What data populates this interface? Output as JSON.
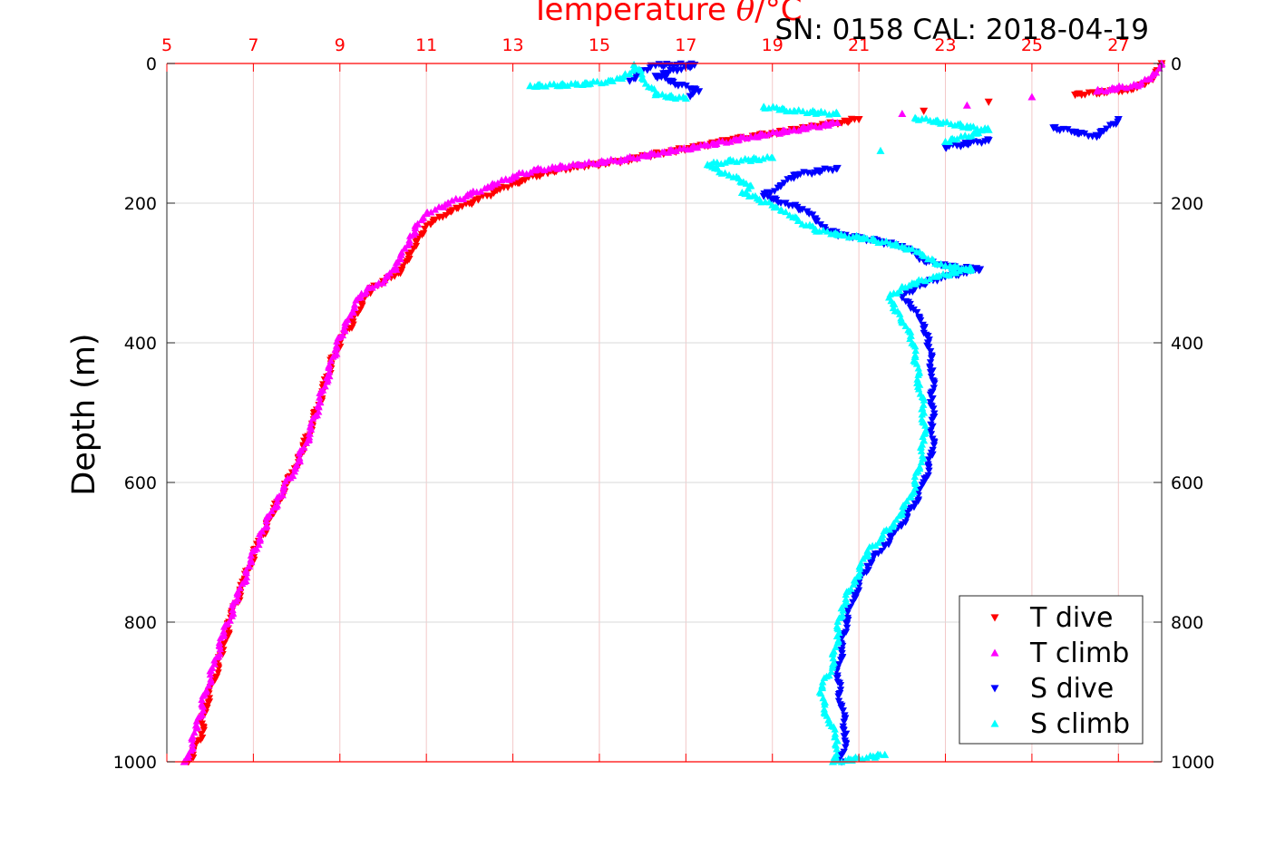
{
  "header": {
    "title_prefix": "Temperature ",
    "title_symbol": "θ",
    "title_unit": "/°C",
    "serial_label": "SN: 0158  CAL: 2018-04-19"
  },
  "colors": {
    "t_dive": "#ff0000",
    "t_climb": "#ff00ff",
    "s_dive": "#0000ff",
    "s_climb": "#00ffff",
    "top_axis": "#ff0000",
    "grid_red": "#f3c8c8",
    "grid_gray": "#d9d9d9"
  },
  "chart_data": {
    "type": "scatter",
    "ylabel": "Depth (m)",
    "xlim": [
      5,
      28
    ],
    "ylim": [
      0,
      1000
    ],
    "y_reversed": true,
    "x_ticks": [
      "5",
      "7",
      "9",
      "11",
      "13",
      "15",
      "17",
      "19",
      "21",
      "23",
      "25",
      "27"
    ],
    "y_ticks_left": [
      "0",
      "200",
      "400",
      "600",
      "800",
      "1000"
    ],
    "y_ticks_right": [
      "0",
      "200",
      "400",
      "600",
      "800",
      "1000"
    ],
    "grid": true,
    "legend_position": "bottom-right",
    "series": [
      {
        "name": "T dive",
        "marker": "triangle-down",
        "points": [
          [
            28.0,
            0
          ],
          [
            27.9,
            10
          ],
          [
            27.7,
            25
          ],
          [
            27.3,
            37
          ],
          [
            26.0,
            45
          ],
          [
            24.0,
            55
          ],
          [
            22.5,
            68
          ],
          [
            21.0,
            80
          ],
          [
            20.0,
            90
          ],
          [
            19.0,
            100
          ],
          [
            18.0,
            110
          ],
          [
            17.2,
            120
          ],
          [
            16.3,
            130
          ],
          [
            15.5,
            140
          ],
          [
            14.5,
            148
          ],
          [
            13.7,
            157
          ],
          [
            13.2,
            168
          ],
          [
            12.7,
            180
          ],
          [
            12.2,
            195
          ],
          [
            11.7,
            207
          ],
          [
            11.3,
            220
          ],
          [
            11.1,
            230
          ],
          [
            10.9,
            245
          ],
          [
            10.7,
            265
          ],
          [
            10.6,
            280
          ],
          [
            10.4,
            300
          ],
          [
            10.0,
            312
          ],
          [
            9.7,
            325
          ],
          [
            9.5,
            345
          ],
          [
            9.3,
            370
          ],
          [
            9.0,
            400
          ],
          [
            8.8,
            430
          ],
          [
            8.6,
            470
          ],
          [
            8.4,
            510
          ],
          [
            8.1,
            560
          ],
          [
            7.8,
            600
          ],
          [
            7.4,
            650
          ],
          [
            7.1,
            690
          ],
          [
            6.8,
            740
          ],
          [
            6.5,
            790
          ],
          [
            6.3,
            840
          ],
          [
            6.1,
            880
          ],
          [
            5.9,
            920
          ],
          [
            5.8,
            960
          ],
          [
            5.6,
            990
          ],
          [
            5.5,
            1000
          ]
        ]
      },
      {
        "name": "T climb",
        "marker": "triangle-up",
        "points": [
          [
            28.0,
            0
          ],
          [
            27.8,
            15
          ],
          [
            27.5,
            30
          ],
          [
            26.5,
            40
          ],
          [
            25.0,
            48
          ],
          [
            23.5,
            60
          ],
          [
            22.0,
            72
          ],
          [
            20.5,
            85
          ],
          [
            19.5,
            95
          ],
          [
            18.5,
            105
          ],
          [
            17.5,
            117
          ],
          [
            16.5,
            127
          ],
          [
            15.5,
            138
          ],
          [
            14.5,
            145
          ],
          [
            13.5,
            153
          ],
          [
            13.0,
            162
          ],
          [
            12.5,
            175
          ],
          [
            12.0,
            188
          ],
          [
            11.5,
            200
          ],
          [
            11.0,
            215
          ],
          [
            10.8,
            230
          ],
          [
            10.7,
            245
          ],
          [
            10.5,
            265
          ],
          [
            10.4,
            280
          ],
          [
            10.3,
            295
          ],
          [
            9.9,
            315
          ],
          [
            9.5,
            330
          ],
          [
            9.3,
            355
          ],
          [
            9.1,
            380
          ],
          [
            8.9,
            410
          ],
          [
            8.7,
            450
          ],
          [
            8.5,
            490
          ],
          [
            8.3,
            530
          ],
          [
            8.0,
            575
          ],
          [
            7.6,
            620
          ],
          [
            7.2,
            670
          ],
          [
            6.9,
            720
          ],
          [
            6.6,
            770
          ],
          [
            6.3,
            820
          ],
          [
            6.1,
            860
          ],
          [
            5.9,
            900
          ],
          [
            5.7,
            950
          ],
          [
            5.5,
            990
          ],
          [
            5.4,
            1000
          ]
        ]
      },
      {
        "name": "S dive",
        "marker": "triangle-down",
        "points": [
          [
            15.7,
            25
          ],
          [
            16.0,
            10
          ],
          [
            16.2,
            3
          ],
          [
            16.8,
            2
          ],
          [
            17.2,
            2
          ],
          [
            16.3,
            18
          ],
          [
            17.3,
            40
          ],
          [
            17.1,
            47
          ],
          [
            23.0,
            120
          ],
          [
            24.0,
            110
          ],
          [
            25.5,
            92
          ],
          [
            26.0,
            98
          ],
          [
            26.5,
            105
          ],
          [
            27.0,
            80
          ],
          [
            20.5,
            150
          ],
          [
            19.5,
            160
          ],
          [
            19.2,
            175
          ],
          [
            18.8,
            190
          ],
          [
            19.3,
            200
          ],
          [
            19.8,
            212
          ],
          [
            20.0,
            225
          ],
          [
            20.2,
            235
          ],
          [
            20.5,
            245
          ],
          [
            21.0,
            250
          ],
          [
            21.5,
            255
          ],
          [
            22.0,
            262
          ],
          [
            22.3,
            270
          ],
          [
            22.4,
            280
          ],
          [
            23.0,
            290
          ],
          [
            23.8,
            295
          ],
          [
            23.0,
            305
          ],
          [
            22.3,
            320
          ],
          [
            22.0,
            335
          ],
          [
            22.2,
            350
          ],
          [
            22.4,
            365
          ],
          [
            22.5,
            380
          ],
          [
            22.6,
            400
          ],
          [
            22.7,
            440
          ],
          [
            22.7,
            480
          ],
          [
            22.7,
            520
          ],
          [
            22.7,
            560
          ],
          [
            22.5,
            600
          ],
          [
            22.3,
            630
          ],
          [
            22.0,
            660
          ],
          [
            21.6,
            690
          ],
          [
            21.2,
            720
          ],
          [
            20.9,
            760
          ],
          [
            20.7,
            800
          ],
          [
            20.6,
            840
          ],
          [
            20.5,
            880
          ],
          [
            20.6,
            920
          ],
          [
            20.7,
            960
          ],
          [
            20.6,
            1000
          ]
        ]
      },
      {
        "name": "S climb",
        "marker": "triangle-up",
        "points": [
          [
            13.4,
            32
          ],
          [
            14.5,
            30
          ],
          [
            15.3,
            25
          ],
          [
            15.7,
            15
          ],
          [
            15.8,
            2
          ],
          [
            16.3,
            45
          ],
          [
            17.0,
            50
          ],
          [
            18.8,
            62
          ],
          [
            19.5,
            68
          ],
          [
            20.5,
            72
          ],
          [
            22.3,
            78
          ],
          [
            23.5,
            90
          ],
          [
            24.0,
            95
          ],
          [
            23.0,
            112
          ],
          [
            21.5,
            125
          ],
          [
            19.0,
            135
          ],
          [
            18.0,
            140
          ],
          [
            17.5,
            145
          ],
          [
            18.0,
            160
          ],
          [
            18.5,
            175
          ],
          [
            18.3,
            185
          ],
          [
            18.7,
            195
          ],
          [
            19.2,
            210
          ],
          [
            19.6,
            225
          ],
          [
            20.0,
            238
          ],
          [
            20.5,
            245
          ],
          [
            21.3,
            252
          ],
          [
            22.0,
            262
          ],
          [
            22.4,
            270
          ],
          [
            22.6,
            280
          ],
          [
            23.0,
            290
          ],
          [
            23.6,
            294
          ],
          [
            22.8,
            305
          ],
          [
            22.0,
            320
          ],
          [
            21.7,
            335
          ],
          [
            21.8,
            350
          ],
          [
            22.0,
            370
          ],
          [
            22.2,
            390
          ],
          [
            22.3,
            420
          ],
          [
            22.4,
            460
          ],
          [
            22.5,
            500
          ],
          [
            22.5,
            540
          ],
          [
            22.4,
            580
          ],
          [
            22.2,
            620
          ],
          [
            21.8,
            660
          ],
          [
            21.2,
            700
          ],
          [
            20.9,
            740
          ],
          [
            20.6,
            780
          ],
          [
            20.5,
            820
          ],
          [
            20.4,
            860
          ],
          [
            20.1,
            900
          ],
          [
            20.3,
            940
          ],
          [
            20.5,
            970
          ],
          [
            20.4,
            1000
          ],
          [
            21.6,
            990
          ]
        ]
      }
    ]
  }
}
